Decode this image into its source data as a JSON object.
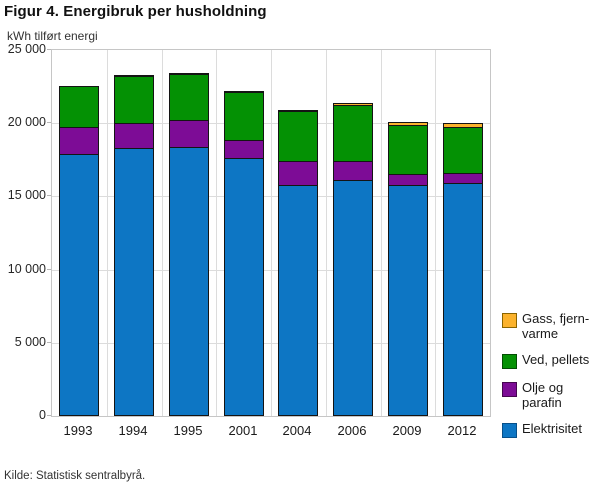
{
  "title": "Figur 4. Energibruk per husholdning",
  "y_axis_unit_label": "kWh tilført energi",
  "source": "Kilde: Statistisk sentralbyrå.",
  "colors": {
    "segment_outline": "#141414",
    "grid": "#dcdcdc",
    "plot_border": "#c6c6c6",
    "series_colors": {
      "elektrisitet": {
        "fill": "#0d76c4",
        "border": "#07508a"
      },
      "olje": {
        "fill": "#7d0c96",
        "border": "#45064f"
      },
      "ved": {
        "fill": "#049104",
        "border": "#024d02"
      },
      "gass": {
        "fill": "#fbb22c",
        "border": "#8a6400"
      }
    }
  },
  "chart_data": {
    "type": "bar",
    "stacked": true,
    "title": "Figur 4. Energibruk per husholdning",
    "ylabel": "kWh tilført energi",
    "ylim": [
      0,
      25000
    ],
    "grid": true,
    "legend_position": "right-bottom",
    "categories": [
      "1993",
      "1994",
      "1995",
      "2001",
      "2004",
      "2006",
      "2009",
      "2012"
    ],
    "series": [
      {
        "key": "elektrisitet",
        "name": "Elektrisitet",
        "values": [
          17900,
          18300,
          18400,
          17600,
          15800,
          16100,
          15800,
          15900
        ]
      },
      {
        "key": "olje",
        "name": "Olje og parafin",
        "values": [
          1900,
          1800,
          1900,
          1300,
          1700,
          1400,
          850,
          750
        ]
      },
      {
        "key": "ved",
        "name": "Ved, pellets",
        "values": [
          2900,
          3300,
          3200,
          3350,
          3450,
          3900,
          3400,
          3200
        ]
      },
      {
        "key": "gass",
        "name": "Gass, fjernvarme",
        "values": [
          0,
          150,
          100,
          100,
          150,
          200,
          300,
          350
        ]
      }
    ],
    "totals": [
      22700,
      23550,
      23600,
      22350,
      21100,
      21600,
      20350,
      20200
    ],
    "ytick_values": [
      0,
      5000,
      10000,
      15000,
      20000,
      25000
    ],
    "ytick_labels": [
      "0",
      "5 000",
      "10 000",
      "15 000",
      "20 000",
      "25 000"
    ],
    "legend": [
      {
        "key": "gass",
        "label": "Gass, fjern-varme"
      },
      {
        "key": "ved",
        "label": "Ved, pellets"
      },
      {
        "key": "olje",
        "label": "Olje og parafin"
      },
      {
        "key": "elektrisitet",
        "label": "Elektrisitet"
      }
    ]
  }
}
